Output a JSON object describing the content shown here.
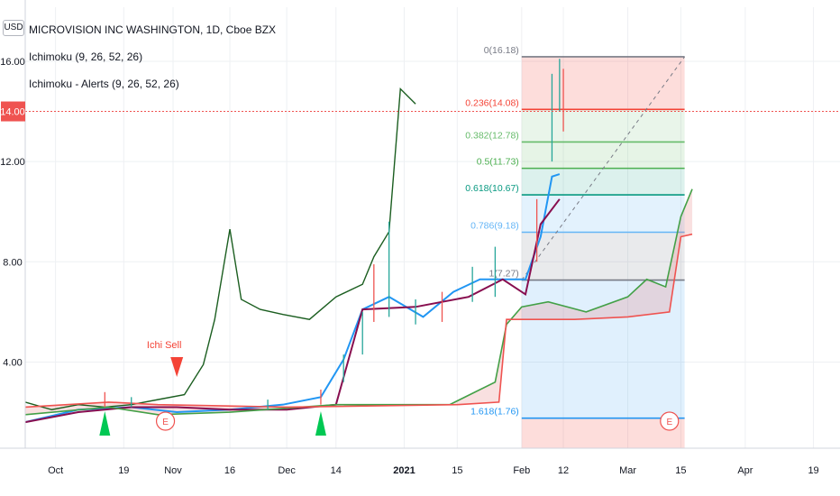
{
  "header": {
    "currency": "USD",
    "symbol_title": "MICROVISION INC WASHINGTON, 1D, Cboe BZX",
    "indicators": [
      "Ichimoku (9, 26, 52, 26)",
      "Ichimoku - Alerts (9, 26, 52, 26)"
    ]
  },
  "price_axis": {
    "ticks": [
      16.0,
      12.0,
      8.0,
      4.0
    ],
    "tick_labels": [
      "16.00",
      "12.00",
      "8.00",
      "4.00"
    ],
    "current_price_label": "14.00",
    "current_price": 14.0
  },
  "time_axis": {
    "labels": [
      "Oct",
      "19",
      "Nov",
      "16",
      "Dec",
      "14",
      "2021",
      "15",
      "Feb",
      "12",
      "Mar",
      "15",
      "Apr",
      "19"
    ]
  },
  "annotations": {
    "sell_text": "Ichi Sell",
    "earnings_marker": "E"
  },
  "colors": {
    "price_line": "#1b5e20",
    "tenkan": "#2196f3",
    "kijun": "#880e4f",
    "span_a": "#43a047",
    "span_b": "#ef5350",
    "sell_marker": "#f44336",
    "buy_marker": "#00c853",
    "current_price_bg": "#ef5350",
    "candle_up": "#26a69a",
    "candle_down": "#ef5350"
  },
  "chart_data": {
    "type": "line",
    "title": "MICROVISION INC WASHINGTON, 1D, Cboe BZX",
    "ylim": [
      0,
      16.8
    ],
    "x_range": [
      "2020-09-23",
      "2021-04-26"
    ],
    "series": [
      {
        "name": "lagging line",
        "x": [
          "2020-09-23",
          "2020-09-30",
          "2020-10-07",
          "2020-10-14",
          "2020-10-21",
          "2020-10-28",
          "2020-11-04",
          "2020-11-09",
          "2020-11-12",
          "2020-11-16",
          "2020-11-19",
          "2020-11-24",
          "2020-11-30",
          "2020-12-07",
          "2020-12-14",
          "2020-12-21",
          "2020-12-24",
          "2020-12-28",
          "2020-12-31",
          "2021-01-04"
        ],
        "values": [
          2.4,
          2.1,
          2.3,
          2.2,
          2.3,
          2.5,
          2.7,
          3.9,
          5.7,
          9.3,
          6.5,
          6.1,
          5.9,
          5.7,
          6.6,
          7.1,
          8.2,
          9.2,
          14.9,
          14.3
        ]
      },
      {
        "name": "conversion line",
        "x": [
          "2020-09-23",
          "2020-10-07",
          "2020-10-21",
          "2020-11-02",
          "2020-11-16",
          "2020-11-30",
          "2020-12-10",
          "2020-12-16",
          "2020-12-21",
          "2020-12-28",
          "2021-01-06",
          "2021-01-14",
          "2021-01-21",
          "2021-01-27",
          "2021-02-02",
          "2021-02-06",
          "2021-02-09",
          "2021-02-11"
        ],
        "values": [
          1.6,
          2.1,
          2.2,
          2.0,
          2.1,
          2.3,
          2.6,
          4.1,
          6.1,
          6.6,
          5.8,
          6.8,
          7.3,
          7.3,
          7.3,
          9.0,
          11.4,
          11.5
        ]
      },
      {
        "name": "base line",
        "x": [
          "2020-09-23",
          "2020-10-07",
          "2020-10-21",
          "2020-11-02",
          "2020-11-16",
          "2020-12-01",
          "2020-12-14",
          "2020-12-21",
          "2021-01-04",
          "2021-01-18",
          "2021-01-27",
          "2021-02-02",
          "2021-02-06",
          "2021-02-11"
        ],
        "values": [
          1.6,
          2.0,
          2.2,
          2.2,
          2.1,
          2.1,
          2.3,
          6.1,
          6.2,
          6.6,
          7.3,
          6.7,
          9.5,
          10.5
        ]
      },
      {
        "name": "leading span A",
        "x": [
          "2020-09-23",
          "2020-10-15",
          "2020-10-28",
          "2020-11-16",
          "2020-12-14",
          "2021-01-13",
          "2021-01-25",
          "2021-01-28",
          "2021-02-01",
          "2021-02-08",
          "2021-02-18",
          "2021-03-01",
          "2021-03-06",
          "2021-03-11",
          "2021-03-15",
          "2021-03-18"
        ],
        "values": [
          1.9,
          2.2,
          1.9,
          2.0,
          2.3,
          2.3,
          3.2,
          5.5,
          6.2,
          6.4,
          6.0,
          6.6,
          7.3,
          7.0,
          9.8,
          10.9
        ]
      },
      {
        "name": "leading span B",
        "x": [
          "2020-09-23",
          "2020-10-15",
          "2020-10-28",
          "2020-12-01",
          "2021-01-15",
          "2021-01-26",
          "2021-01-28",
          "2021-02-15",
          "2021-03-01",
          "2021-03-12",
          "2021-03-15",
          "2021-03-18"
        ],
        "values": [
          2.2,
          2.4,
          2.3,
          2.2,
          2.3,
          2.4,
          5.7,
          5.7,
          5.8,
          6.0,
          9.0,
          9.1
        ]
      }
    ],
    "candles": [
      {
        "x": "2020-10-14",
        "low": 2.2,
        "high": 2.8
      },
      {
        "x": "2020-10-21",
        "low": 2.2,
        "high": 2.6
      },
      {
        "x": "2020-11-26",
        "low": 2.1,
        "high": 2.5
      },
      {
        "x": "2020-12-10",
        "low": 2.3,
        "high": 2.9
      },
      {
        "x": "2020-12-16",
        "low": 3.2,
        "high": 4.3
      },
      {
        "x": "2020-12-21",
        "low": 4.3,
        "high": 6.0
      },
      {
        "x": "2020-12-24",
        "low": 5.6,
        "high": 7.9
      },
      {
        "x": "2020-12-28",
        "low": 5.8,
        "high": 9.6
      },
      {
        "x": "2021-01-04",
        "low": 5.5,
        "high": 6.5
      },
      {
        "x": "2021-01-11",
        "low": 5.6,
        "high": 6.8
      },
      {
        "x": "2021-01-19",
        "low": 6.4,
        "high": 7.8
      },
      {
        "x": "2021-01-25",
        "low": 6.6,
        "high": 8.6
      },
      {
        "x": "2021-02-05",
        "low": 8.0,
        "high": 10.5
      },
      {
        "x": "2021-02-09",
        "low": 12.0,
        "high": 15.5
      },
      {
        "x": "2021-02-11",
        "low": 14.0,
        "high": 16.1
      },
      {
        "x": "2021-02-12",
        "low": 13.2,
        "high": 15.7
      }
    ],
    "fibonacci": {
      "x_range": [
        "2021-02-01",
        "2021-03-16"
      ],
      "levels": [
        {
          "label": "0(16.18)",
          "ratio": 0,
          "price": 16.18,
          "color": "#787b86"
        },
        {
          "label": "0.236(14.08)",
          "ratio": 0.236,
          "price": 14.08,
          "color": "#f44336"
        },
        {
          "label": "0.382(12.78)",
          "ratio": 0.382,
          "price": 12.78,
          "color": "#66bb6a"
        },
        {
          "label": "0.5(11.73)",
          "ratio": 0.5,
          "price": 11.73,
          "color": "#4caf50"
        },
        {
          "label": "0.618(10.67)",
          "ratio": 0.618,
          "price": 10.67,
          "color": "#089981"
        },
        {
          "label": "0.786(9.18)",
          "ratio": 0.786,
          "price": 9.18,
          "color": "#64b5f6"
        },
        {
          "label": "1(7.27)",
          "ratio": 1,
          "price": 7.27,
          "color": "#787b86"
        },
        {
          "label": "1.618(1.76)",
          "ratio": 1.618,
          "price": 1.76,
          "color": "#2196f3"
        }
      ]
    },
    "signals": [
      {
        "type": "sell",
        "x": "2020-11-02",
        "label": "Ichi Sell"
      },
      {
        "type": "buy",
        "x": "2020-10-14"
      },
      {
        "type": "buy",
        "x": "2020-12-10"
      }
    ],
    "earnings": [
      "2020-10-30",
      "2021-03-12"
    ],
    "grid": true
  }
}
